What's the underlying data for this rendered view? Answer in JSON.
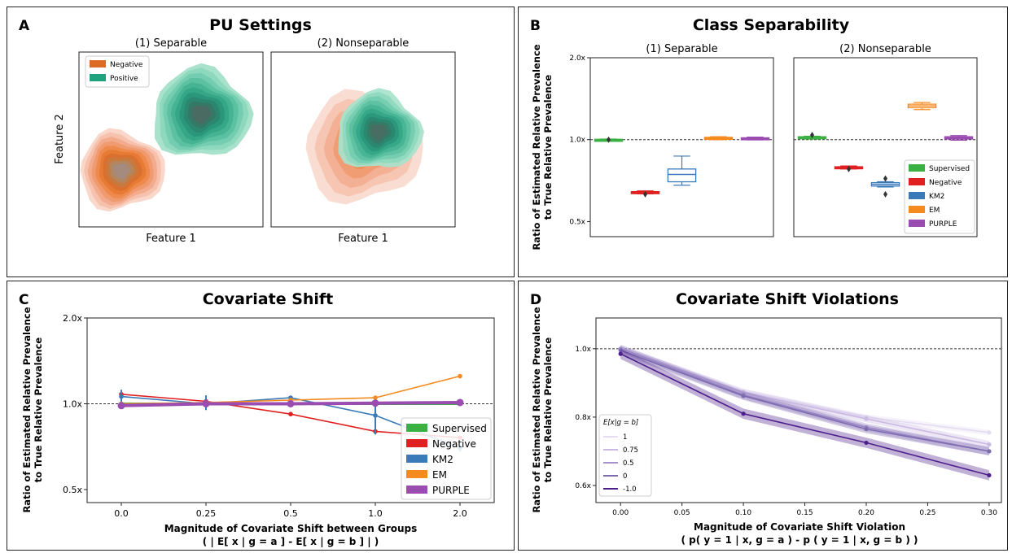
{
  "panels": {
    "A": {
      "letter": "A",
      "title": "PU Settings"
    },
    "B": {
      "letter": "B",
      "title": "Class Separability"
    },
    "C": {
      "letter": "C",
      "title": "Covariate Shift"
    },
    "D": {
      "letter": "D",
      "title": "Covariate Shift Violations"
    }
  },
  "colors": {
    "Supervised": "#3bb143",
    "Negative": "#e02020",
    "KM2": "#3a7ab8",
    "EM": "#f58a1f",
    "PURPLE": "#9a4cb0",
    "negative_density": "#f07a4a",
    "positive_density": "#1fa37e"
  },
  "chart_data": [
    {
      "id": "A",
      "type": "density",
      "subplots": [
        {
          "title": "(1) Separable"
        },
        {
          "title": "(2) Nonseparable"
        }
      ],
      "xlabel": "Feature 1",
      "ylabel": "Feature 2",
      "legend": [
        "Negative",
        "Positive"
      ],
      "legend_loc": "upper-left"
    },
    {
      "id": "B",
      "type": "box",
      "ylabel": "Ratio of Estimated Relative Prevalence to True Relative Prevalence",
      "ylabel_lines": [
        "Ratio of Estimated Relative Prevalence",
        "to True Relative Prevalence"
      ],
      "yscale": "log",
      "ylim": [
        0.44,
        2.0
      ],
      "yticks": [
        {
          "v": 0.5,
          "label": "0.5x"
        },
        {
          "v": 1.0,
          "label": "1.0x"
        },
        {
          "v": 2.0,
          "label": "2.0x"
        }
      ],
      "reference_line": 1.0,
      "methods": [
        "Supervised",
        "Negative",
        "KM2",
        "EM",
        "PURPLE"
      ],
      "legend_loc": "lower-right",
      "subplots": [
        {
          "title": "(1) Separable",
          "boxes": [
            {
              "method": "Supervised",
              "q1": 0.997,
              "median": 1.0,
              "q3": 1.003,
              "wlo": 0.995,
              "whi": 1.005,
              "outliers": [
                1.0
              ]
            },
            {
              "method": "Negative",
              "q1": 0.636,
              "median": 0.64,
              "q3": 0.644,
              "wlo": 0.632,
              "whi": 0.648,
              "outliers": [
                0.63
              ]
            },
            {
              "method": "KM2",
              "q1": 0.7,
              "median": 0.745,
              "q3": 0.78,
              "wlo": 0.68,
              "whi": 0.87,
              "outliers": []
            },
            {
              "method": "EM",
              "q1": 1.005,
              "median": 1.012,
              "q3": 1.02,
              "wlo": 1.0,
              "whi": 1.025,
              "outliers": []
            },
            {
              "method": "PURPLE",
              "q1": 1.003,
              "median": 1.01,
              "q3": 1.016,
              "wlo": 0.998,
              "whi": 1.022,
              "outliers": []
            }
          ]
        },
        {
          "title": "(2) Nonseparable",
          "boxes": [
            {
              "method": "Supervised",
              "q1": 1.01,
              "median": 1.018,
              "q3": 1.025,
              "wlo": 1.005,
              "whi": 1.03,
              "outliers": [
                1.04
              ]
            },
            {
              "method": "Negative",
              "q1": 0.785,
              "median": 0.79,
              "q3": 0.795,
              "wlo": 0.78,
              "whi": 0.8,
              "outliers": [
                0.78
              ]
            },
            {
              "method": "KM2",
              "q1": 0.675,
              "median": 0.685,
              "q3": 0.695,
              "wlo": 0.67,
              "whi": 0.7,
              "outliers": [
                0.72,
                0.63
              ]
            },
            {
              "method": "EM",
              "q1": 1.31,
              "median": 1.33,
              "q3": 1.35,
              "wlo": 1.29,
              "whi": 1.37,
              "outliers": []
            },
            {
              "method": "PURPLE",
              "q1": 1.005,
              "median": 1.015,
              "q3": 1.025,
              "wlo": 0.995,
              "whi": 1.035,
              "outliers": []
            }
          ]
        }
      ]
    },
    {
      "id": "C",
      "type": "line",
      "xlabel": "Magnitude of Covariate Shift between Groups",
      "xlabel2": "( | E[ x | g = a ] - E[ x | g = b ] | )",
      "ylabel": "Ratio of Estimated Relative Prevalence to True Relative Prevalence",
      "ylabel_lines": [
        "Ratio of Estimated Relative Prevalence",
        "to True Relative Prevalence"
      ],
      "yscale": "log",
      "ylim": [
        0.45,
        2.0
      ],
      "yticks": [
        {
          "v": 0.5,
          "label": "0.5x"
        },
        {
          "v": 1.0,
          "label": "1.0x"
        },
        {
          "v": 2.0,
          "label": "2.0x"
        }
      ],
      "categories": [
        "0.0",
        "0.25",
        "0.5",
        "1.0",
        "2.0"
      ],
      "reference_line": 1.0,
      "legend_loc": "lower-right",
      "series": [
        {
          "name": "Supervised",
          "values": [
            1.0,
            1.0,
            1.0,
            1.0,
            1.0
          ],
          "err": [
            [
              0.99,
              1.01
            ],
            [
              0.99,
              1.01
            ],
            [
              0.99,
              1.01
            ],
            [
              0.99,
              1.01
            ],
            [
              0.99,
              1.01
            ]
          ]
        },
        {
          "name": "Negative",
          "values": [
            1.08,
            1.02,
            0.92,
            0.8,
            0.76
          ],
          "err": null
        },
        {
          "name": "KM2",
          "values": [
            1.06,
            1.0,
            1.05,
            0.91,
            0.7
          ],
          "err": [
            [
              0.97,
              1.12
            ],
            [
              0.95,
              1.07
            ],
            [
              1.04,
              1.06
            ],
            [
              0.78,
              1.02
            ],
            [
              0.68,
              0.72
            ]
          ]
        },
        {
          "name": "EM",
          "values": [
            1.0,
            1.01,
            1.03,
            1.05,
            1.25
          ],
          "err": null
        },
        {
          "name": "PURPLE",
          "values": [
            0.985,
            1.0,
            1.0,
            1.005,
            1.01
          ],
          "err": [
            [
              0.975,
              0.995
            ],
            [
              0.99,
              1.01
            ],
            [
              0.99,
              1.01
            ],
            [
              0.995,
              1.015
            ],
            [
              1.0,
              1.02
            ]
          ]
        }
      ]
    },
    {
      "id": "D",
      "type": "line",
      "xlabel": "Magnitude of Covariate Shift Violation",
      "xlabel2": "( p( y = 1 | x, g = a ) - p ( y = 1 | x, g = b ) )",
      "ylabel": "Ratio of Estimated Relative Prevalence to True Relative Prevalence",
      "ylabel_lines": [
        "Ratio of Estimated Relative Prevalence",
        "to True Relative Prevalence"
      ],
      "xlim": [
        -0.02,
        0.31
      ],
      "ylim": [
        0.55,
        1.09
      ],
      "xticks": [
        {
          "v": 0.0,
          "label": "0.00"
        },
        {
          "v": 0.05,
          "label": "0.05"
        },
        {
          "v": 0.1,
          "label": "0.10"
        },
        {
          "v": 0.15,
          "label": "0.15"
        },
        {
          "v": 0.2,
          "label": "0.20"
        },
        {
          "v": 0.25,
          "label": "0.25"
        },
        {
          "v": 0.3,
          "label": "0.30"
        }
      ],
      "yticks": [
        {
          "v": 0.6,
          "label": "0.6x"
        },
        {
          "v": 0.8,
          "label": "0.8x"
        },
        {
          "v": 1.0,
          "label": "1.0x"
        }
      ],
      "reference_line": 1.0,
      "legend_title": "E[x|g = b]",
      "legend_loc": "lower-left",
      "x": [
        0.0,
        0.1,
        0.2,
        0.3
      ],
      "series": [
        {
          "name": "1",
          "color": "#e4dcf0",
          "values": [
            1.0,
            0.875,
            0.8,
            0.755
          ],
          "band": 0.008
        },
        {
          "name": "0.75",
          "color": "#c8b8e2",
          "values": [
            1.0,
            0.872,
            0.795,
            0.72
          ],
          "band": 0.01
        },
        {
          "name": "0.5",
          "color": "#a592cf",
          "values": [
            1.0,
            0.865,
            0.77,
            0.7
          ],
          "band": 0.012
        },
        {
          "name": "0",
          "color": "#7d6bb0",
          "values": [
            0.995,
            0.862,
            0.765,
            0.7
          ],
          "band": 0.012
        },
        {
          "name": "-1.0",
          "color": "#4c1f8c",
          "values": [
            0.985,
            0.81,
            0.725,
            0.63
          ],
          "band": 0.015
        }
      ]
    }
  ]
}
